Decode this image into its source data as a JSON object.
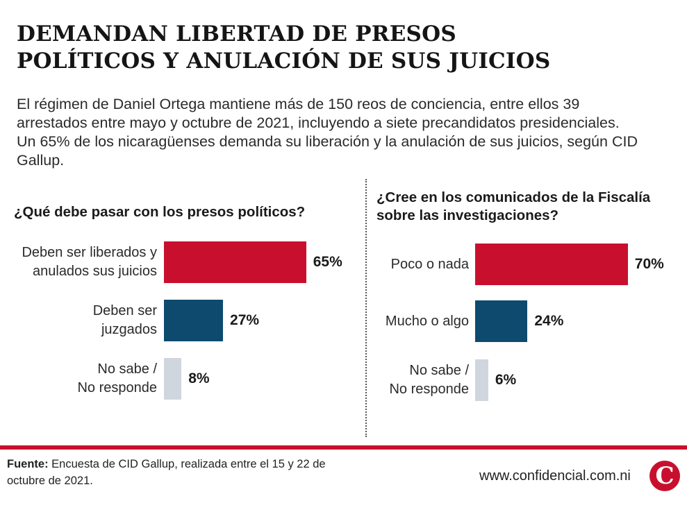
{
  "header": {
    "title_line1": "DEMANDAN LIBERTAD DE PRESOS",
    "title_line2": "POLÍTICOS Y ANULACIÓN DE SUS JUICIOS",
    "lede": "El régimen de Daniel Ortega mantiene más de 150 reos de conciencia, entre ellos 39 arrestados entre mayo y octubre de 2021, incluyendo a siete precandidatos presidenciales. Un 65% de los nicaragüenses demanda su liberación y la anulación de sus juicios, según CID Gallup."
  },
  "colors": {
    "red": "#c8102e",
    "navy": "#0e4a6e",
    "light": "#d0d6de"
  },
  "chart_data": [
    {
      "type": "bar",
      "orientation": "horizontal",
      "title": "¿Qué debe pasar con los presos políticos?",
      "categories": [
        "Deben ser liberados y\nanulados sus juicios",
        "Deben ser\njuzgados",
        "No sabe /\nNo responde"
      ],
      "values": [
        65,
        27,
        8
      ],
      "value_labels": [
        "65%",
        "27%",
        "8%"
      ],
      "unit": "%",
      "xlim": [
        0,
        100
      ]
    },
    {
      "type": "bar",
      "orientation": "horizontal",
      "title": "¿Cree en los comunicados de la Fiscalía sobre las investigaciones?",
      "categories": [
        "Poco o nada",
        "Mucho o algo",
        "No sabe /\nNo responde"
      ],
      "values": [
        70,
        24,
        6
      ],
      "value_labels": [
        "70%",
        "24%",
        "6%"
      ],
      "unit": "%",
      "xlim": [
        0,
        100
      ]
    }
  ],
  "footer": {
    "source_label": "Fuente:",
    "source_text": " Encuesta de CID Gallup, realizada entre el 15 y 22 de octubre de 2021.",
    "website": "www.confidencial.com.ni",
    "logo_letter": "C"
  }
}
